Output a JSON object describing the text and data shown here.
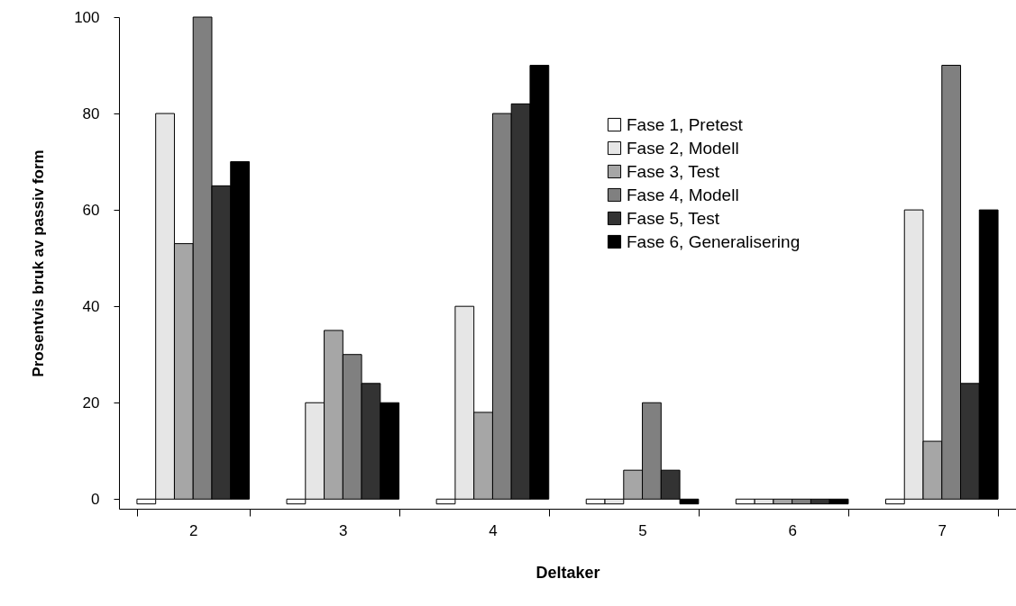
{
  "chart_data": {
    "type": "bar",
    "xlabel": "Deltaker",
    "ylabel": "Prosentvis bruk av passiv form",
    "categories": [
      "2",
      "3",
      "4",
      "5",
      "6",
      "7"
    ],
    "series": [
      {
        "name": "Fase 1, Pretest",
        "color": "#ffffff",
        "values": [
          -1,
          -1,
          -1,
          -1,
          -1,
          -1
        ]
      },
      {
        "name": "Fase 2, Modell",
        "color": "#e6e6e6",
        "values": [
          80,
          20,
          40,
          -1,
          -1,
          60
        ]
      },
      {
        "name": "Fase 3, Test",
        "color": "#a6a6a6",
        "values": [
          53,
          35,
          18,
          6,
          -1,
          12
        ]
      },
      {
        "name": "Fase 4, Modell",
        "color": "#808080",
        "values": [
          100,
          30,
          80,
          20,
          -1,
          90
        ]
      },
      {
        "name": "Fase 5, Test",
        "color": "#333333",
        "values": [
          65,
          24,
          82,
          6,
          -1,
          24
        ]
      },
      {
        "name": "Fase 6, Generalisering",
        "color": "#000000",
        "values": [
          70,
          20,
          90,
          -1,
          -1,
          60
        ]
      }
    ],
    "ylim": [
      -2,
      100
    ],
    "yticks": [
      0,
      20,
      40,
      60,
      80,
      100
    ],
    "grid": false,
    "legend": "top right"
  }
}
